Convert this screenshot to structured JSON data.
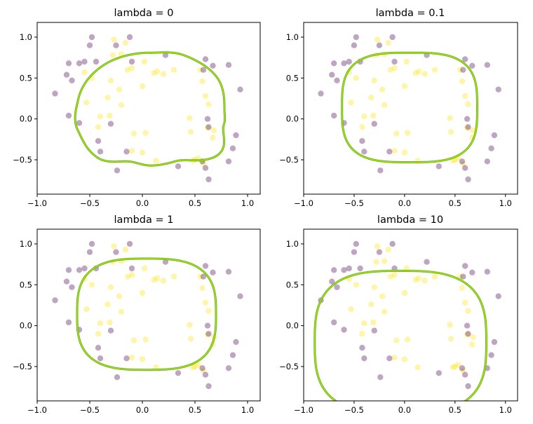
{
  "colors": {
    "class0": "#440154",
    "class1": "#fde725",
    "boundary_outer": "#5ab027",
    "boundary_inner": "#c8e600",
    "axes": "#000000",
    "background": "#ffffff"
  },
  "chart_data": [
    {
      "type": "scatter",
      "title": "lambda = 0",
      "lambda": 0,
      "xlim": [
        -1.0,
        1.12
      ],
      "ylim": [
        -0.92,
        1.18
      ],
      "xticks": [
        -1.0,
        -0.5,
        0.0,
        0.5,
        1.0
      ],
      "xtick_labels": [
        "−1.0",
        "−0.5",
        "0.0",
        "0.5",
        "1.0"
      ],
      "yticks": [
        -0.5,
        0.0,
        0.5,
        1.0
      ],
      "ytick_labels": [
        "−0.5",
        "0.0",
        "0.5",
        "1.0"
      ],
      "boundary": {
        "cx": 0.08,
        "cy": 0.12,
        "rx": [
          [
            0,
            0.7
          ],
          [
            35,
            0.74
          ],
          [
            65,
            0.73
          ],
          [
            90,
            0.69
          ],
          [
            130,
            0.7
          ],
          [
            170,
            0.7
          ],
          [
            200,
            0.74
          ],
          [
            230,
            0.78
          ],
          [
            255,
            0.67
          ],
          [
            270,
            0.69
          ],
          [
            290,
            0.68
          ],
          [
            320,
            0.85
          ],
          [
            345,
            0.72
          ],
          [
            360,
            0.7
          ]
        ],
        "ry": [
          [
            0,
            0.7
          ],
          [
            35,
            0.74
          ],
          [
            65,
            0.73
          ],
          [
            90,
            0.69
          ],
          [
            130,
            0.7
          ],
          [
            170,
            0.7
          ],
          [
            200,
            0.74
          ],
          [
            230,
            0.78
          ],
          [
            255,
            0.67
          ],
          [
            270,
            0.69
          ],
          [
            290,
            0.68
          ],
          [
            320,
            0.85
          ],
          [
            345,
            0.72
          ],
          [
            360,
            0.7
          ]
        ],
        "exp": 2.0,
        "radial": true
      }
    },
    {
      "type": "scatter",
      "title": "lambda = 0.1",
      "lambda": 0.1,
      "xlim": [
        -1.0,
        1.12
      ],
      "ylim": [
        -0.92,
        1.18
      ],
      "xticks": [
        -1.0,
        -0.5,
        0.0,
        0.5,
        1.0
      ],
      "xtick_labels": [
        "−1.0",
        "−0.5",
        "0.0",
        "0.5",
        "1.0"
      ],
      "yticks": [
        -0.5,
        0.0,
        0.5,
        1.0
      ],
      "ytick_labels": [
        "−0.5",
        "0.0",
        "0.5",
        "1.0"
      ],
      "boundary": {
        "cx": 0.05,
        "cy": 0.14,
        "rx": 0.67,
        "ry": 0.67,
        "exp": 3.2,
        "radial": false
      }
    },
    {
      "type": "scatter",
      "title": "lambda = 1",
      "lambda": 1,
      "xlim": [
        -1.0,
        1.12
      ],
      "ylim": [
        -0.92,
        1.18
      ],
      "xticks": [
        -1.0,
        -0.5,
        0.0,
        0.5,
        1.0
      ],
      "xtick_labels": [
        "−1.0",
        "−0.5",
        "0.0",
        "0.5",
        "1.0"
      ],
      "yticks": [
        -0.5,
        0.0,
        0.5,
        1.0
      ],
      "ytick_labels": [
        "−0.5",
        "0.0",
        "0.5",
        "1.0"
      ],
      "boundary": {
        "cx": 0.04,
        "cy": 0.14,
        "rx": 0.66,
        "ry": 0.68,
        "exp": 3.0,
        "radial": false
      }
    },
    {
      "type": "scatter",
      "title": "lambda = 10",
      "lambda": 10,
      "xlim": [
        -1.0,
        1.12
      ],
      "ylim": [
        -0.92,
        1.18
      ],
      "xticks": [
        -1.0,
        -0.5,
        0.0,
        0.5,
        1.0
      ],
      "xtick_labels": [
        "−1.0",
        "−0.5",
        "0.0",
        "0.5",
        "1.0"
      ],
      "yticks": [
        -0.5,
        0.0,
        0.5,
        1.0
      ],
      "ytick_labels": [
        "−0.5",
        "0.0",
        "0.5",
        "1.0"
      ],
      "boundary": {
        "cx": -0.04,
        "cy": -0.2,
        "rx": 0.85,
        "ry": 0.87,
        "exp": 3.0,
        "radial": false
      }
    }
  ],
  "points": {
    "class0": [
      [
        -0.48,
        1.0
      ],
      [
        -0.12,
        1.0
      ],
      [
        -0.5,
        0.9
      ],
      [
        -0.25,
        0.9
      ],
      [
        0.22,
        0.78
      ],
      [
        -0.7,
        0.68
      ],
      [
        -0.6,
        0.68
      ],
      [
        -0.55,
        0.7
      ],
      [
        -0.44,
        0.7
      ],
      [
        -0.1,
        0.7
      ],
      [
        0.6,
        0.73
      ],
      [
        0.67,
        0.65
      ],
      [
        0.82,
        0.66
      ],
      [
        -0.72,
        0.54
      ],
      [
        -0.67,
        0.47
      ],
      [
        0.58,
        0.6
      ],
      [
        0.93,
        0.36
      ],
      [
        -0.83,
        0.31
      ],
      [
        -0.7,
        0.04
      ],
      [
        -0.6,
        -0.05
      ],
      [
        -0.3,
        -0.06
      ],
      [
        0.62,
        0.0
      ],
      [
        0.63,
        -0.1
      ],
      [
        0.89,
        -0.2
      ],
      [
        -0.42,
        -0.27
      ],
      [
        0.86,
        -0.36
      ],
      [
        -0.4,
        -0.4
      ],
      [
        -0.15,
        -0.4
      ],
      [
        0.34,
        -0.58
      ],
      [
        -0.24,
        -0.63
      ],
      [
        0.6,
        -0.6
      ],
      [
        0.82,
        -0.52
      ],
      [
        0.63,
        -0.74
      ],
      [
        0.57,
        -0.52
      ]
    ],
    "class1": [
      [
        -0.27,
        0.97
      ],
      [
        -0.16,
        0.93
      ],
      [
        -0.28,
        0.78
      ],
      [
        -0.2,
        0.79
      ],
      [
        0.02,
        0.7
      ],
      [
        -0.1,
        0.62
      ],
      [
        0.14,
        0.58
      ],
      [
        0.11,
        0.56
      ],
      [
        -0.55,
        0.57
      ],
      [
        -0.48,
        0.5
      ],
      [
        -0.14,
        0.6
      ],
      [
        -0.3,
        0.47
      ],
      [
        0.0,
        0.4
      ],
      [
        -0.22,
        0.36
      ],
      [
        0.57,
        0.46
      ],
      [
        -0.53,
        0.2
      ],
      [
        0.6,
        0.28
      ],
      [
        0.63,
        0.18
      ],
      [
        -0.4,
        0.03
      ],
      [
        -0.31,
        0.04
      ],
      [
        -0.2,
        0.17
      ],
      [
        0.45,
        0.01
      ],
      [
        0.62,
        -0.11
      ],
      [
        0.68,
        -0.14
      ],
      [
        -0.08,
        -0.18
      ],
      [
        0.03,
        -0.17
      ],
      [
        0.67,
        -0.23
      ],
      [
        0.46,
        -0.16
      ],
      [
        -0.1,
        -0.39
      ],
      [
        0.0,
        -0.41
      ],
      [
        0.13,
        -0.51
      ],
      [
        0.48,
        -0.51
      ],
      [
        0.53,
        -0.48
      ],
      [
        0.58,
        -0.55
      ],
      [
        -0.42,
        -0.1
      ],
      [
        0.3,
        0.6
      ],
      [
        0.55,
        0.6
      ],
      [
        0.5,
        -0.5
      ],
      [
        -0.33,
        0.26
      ],
      [
        0.2,
        0.55
      ]
    ]
  }
}
